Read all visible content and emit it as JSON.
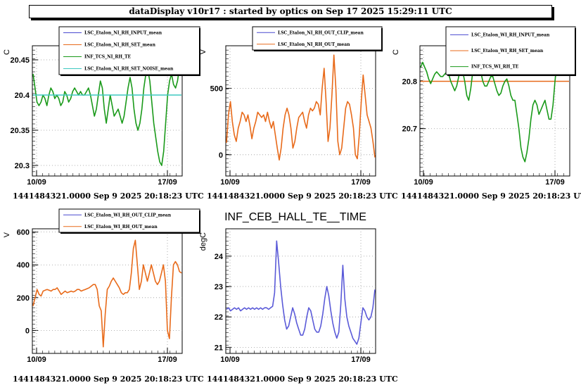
{
  "window": {
    "title": "dataDisplay v10r17 : started by optics on Sep 17 2025 15:29:11 UTC"
  },
  "chart_data": [
    {
      "type": "line",
      "title": "",
      "ylabel": "C",
      "xlabel": "",
      "x_ticks": [
        "10/09",
        "17/09"
      ],
      "y_ticks": [
        "20.3",
        "20.35",
        "20.4",
        "20.45"
      ],
      "ylim": [
        20.285,
        20.47
      ],
      "grid": true,
      "legend_position": "top-right",
      "footer": "1441484321.0000 Sep 9 2025 20:18:23 UTC",
      "series": [
        {
          "name": "LSC_Etalon_NI_RH_INPUT_mean",
          "color": "#4a4ad0",
          "values": []
        },
        {
          "name": "LSC_Etalon_NI_RH_SET_mean",
          "color": "#e86a1a",
          "values": []
        },
        {
          "name": "INF_TCS_NI_RH_TE",
          "color": "#1a9a1a",
          "values": [
            20.43,
            20.41,
            20.39,
            20.385,
            20.39,
            20.4,
            20.395,
            20.385,
            20.4,
            20.41,
            20.405,
            20.395,
            20.4,
            20.395,
            20.385,
            20.39,
            20.405,
            20.4,
            20.39,
            20.395,
            20.405,
            20.41,
            20.405,
            20.4,
            20.405,
            20.4,
            20.4,
            20.405,
            20.41,
            20.4,
            20.385,
            20.37,
            20.38,
            20.4,
            20.42,
            20.41,
            20.38,
            20.36,
            20.38,
            20.4,
            20.385,
            20.37,
            20.375,
            20.38,
            20.37,
            20.36,
            20.37,
            20.39,
            20.41,
            20.425,
            20.41,
            20.38,
            20.36,
            20.35,
            20.36,
            20.38,
            20.41,
            20.43,
            20.435,
            20.42,
            20.39,
            20.36,
            20.34,
            20.32,
            20.305,
            20.3,
            20.32,
            20.36,
            20.4,
            20.42,
            20.43,
            20.415,
            20.41,
            20.42,
            20.44,
            20.455
          ]
        },
        {
          "name": "LSC_Etalon_NI_RH_SET_NOISE_mean",
          "color": "#3ec8c0",
          "values": [
            20.4,
            20.4
          ]
        }
      ]
    },
    {
      "type": "line",
      "title": "",
      "ylabel": "V",
      "xlabel": "",
      "x_ticks": [
        "10/09",
        "17/09"
      ],
      "y_ticks": [
        "0",
        "500"
      ],
      "ylim": [
        -160,
        820
      ],
      "grid": true,
      "legend_position": "top-right",
      "footer": "1441484321.0000 Sep 9 2025 20:18:23 UTC",
      "series": [
        {
          "name": "LSC_Etalon_NI_RH_OUT_CLIP_mean",
          "color": "#4a4ad0",
          "values": []
        },
        {
          "name": "LSC_Etalon_NI_RH_OUT_mean",
          "color": "#e86a1a",
          "values": [
            90,
            300,
            400,
            250,
            150,
            100,
            200,
            250,
            320,
            300,
            250,
            300,
            220,
            120,
            200,
            250,
            320,
            300,
            280,
            300,
            250,
            320,
            250,
            200,
            250,
            150,
            50,
            -40,
            50,
            200,
            300,
            350,
            300,
            200,
            50,
            100,
            200,
            280,
            300,
            320,
            250,
            200,
            300,
            350,
            330,
            350,
            400,
            380,
            300,
            500,
            650,
            400,
            100,
            200,
            450,
            750,
            500,
            100,
            0,
            50,
            200,
            350,
            400,
            380,
            300,
            200,
            0,
            -30,
            150,
            400,
            600,
            450,
            300,
            250,
            200,
            100,
            -20
          ]
        }
      ]
    },
    {
      "type": "line",
      "title": "",
      "ylabel": "C",
      "xlabel": "",
      "x_ticks": [
        "10/09",
        "17/09"
      ],
      "y_ticks": [
        "20.7",
        "20.8"
      ],
      "ylim": [
        20.6,
        20.875
      ],
      "grid": true,
      "legend_position": "top-right",
      "footer": "1441484321.0000 Sep 9 2025 20:18:23 UTC",
      "series": [
        {
          "name": "LSC_Etalon_WI_RH_INPUT_mean",
          "color": "#4a4ad0",
          "values": []
        },
        {
          "name": "LSC_Etalon_WI_RH_SET_mean",
          "color": "#e86a1a",
          "values": [
            20.8,
            20.8
          ]
        },
        {
          "name": "INF_TCS_WI_RH_TE",
          "color": "#1a9a1a",
          "values": [
            20.83,
            20.84,
            20.83,
            20.82,
            20.805,
            20.795,
            20.805,
            20.815,
            20.82,
            20.815,
            20.81,
            20.81,
            20.815,
            20.82,
            20.815,
            20.8,
            20.79,
            20.78,
            20.79,
            20.81,
            20.83,
            20.82,
            20.8,
            20.77,
            20.76,
            20.785,
            20.82,
            20.84,
            20.855,
            20.84,
            20.82,
            20.8,
            20.79,
            20.79,
            20.8,
            20.81,
            20.81,
            20.795,
            20.78,
            20.77,
            20.775,
            20.79,
            20.8,
            20.805,
            20.79,
            20.77,
            20.76,
            20.76,
            20.73,
            20.7,
            20.66,
            20.64,
            20.63,
            20.65,
            20.68,
            20.72,
            20.75,
            20.76,
            20.75,
            20.73,
            20.74,
            20.75,
            20.76,
            20.74,
            20.72,
            20.72,
            20.75,
            20.8,
            20.84,
            20.86,
            20.85,
            20.83,
            20.82,
            20.83,
            20.84
          ]
        }
      ]
    },
    {
      "type": "line",
      "title": "",
      "ylabel": "V",
      "xlabel": "",
      "x_ticks": [
        "10/09",
        "17/09"
      ],
      "y_ticks": [
        "0",
        "200",
        "400",
        "600"
      ],
      "ylim": [
        -140,
        620
      ],
      "grid": true,
      "legend_position": "top-right",
      "footer": "1441484321.0000 Sep 9 2025 20:18:23 UTC",
      "series": [
        {
          "name": "LSC_Etalon_WI_RH_OUT_CLIP_mean",
          "color": "#4a4ad0",
          "values": []
        },
        {
          "name": "LSC_Etalon_WI_RH_OUT_mean",
          "color": "#e86a1a",
          "values": [
            150,
            200,
            250,
            220,
            210,
            240,
            245,
            250,
            245,
            240,
            250,
            250,
            260,
            240,
            220,
            230,
            240,
            230,
            235,
            240,
            235,
            240,
            250,
            250,
            240,
            245,
            250,
            255,
            260,
            270,
            280,
            280,
            250,
            150,
            120,
            -100,
            100,
            250,
            270,
            300,
            320,
            300,
            280,
            260,
            230,
            220,
            230,
            230,
            250,
            350,
            500,
            550,
            400,
            250,
            300,
            400,
            350,
            300,
            350,
            400,
            350,
            300,
            280,
            300,
            350,
            400,
            300,
            0,
            -50,
            200,
            400,
            420,
            400,
            360,
            350
          ]
        }
      ]
    },
    {
      "type": "line",
      "title": "INF_CEB_HALL_TE__TIME",
      "ylabel": "degC",
      "xlabel": "",
      "x_ticks": [
        "10/09",
        "17/09"
      ],
      "y_ticks": [
        "21",
        "22",
        "23",
        "24"
      ],
      "ylim": [
        20.8,
        24.9
      ],
      "grid": true,
      "legend_position": "",
      "footer": "1441484321.0000 Sep 9 2025 20:18:23 UTC",
      "series": [
        {
          "name": "",
          "color": "#5a5ad8",
          "values": [
            22.25,
            22.3,
            22.2,
            22.25,
            22.3,
            22.25,
            22.3,
            22.2,
            22.25,
            22.3,
            22.25,
            22.3,
            22.25,
            22.3,
            22.25,
            22.3,
            22.25,
            22.3,
            22.25,
            22.3,
            22.3,
            22.25,
            22.3,
            22.35,
            22.8,
            24.5,
            23.8,
            23.0,
            22.4,
            21.9,
            21.6,
            21.7,
            22.0,
            22.3,
            22.1,
            21.8,
            21.6,
            21.4,
            21.4,
            21.6,
            22.0,
            22.3,
            22.2,
            21.9,
            21.6,
            21.5,
            21.5,
            21.7,
            22.1,
            22.6,
            23.0,
            22.7,
            22.2,
            21.8,
            21.5,
            21.3,
            21.5,
            22.4,
            23.7,
            22.6,
            22.0,
            21.7,
            21.5,
            21.3,
            21.2,
            21.1,
            21.3,
            21.8,
            22.3,
            22.2,
            22.0,
            21.9,
            22.0,
            22.3,
            22.9
          ]
        }
      ]
    }
  ]
}
